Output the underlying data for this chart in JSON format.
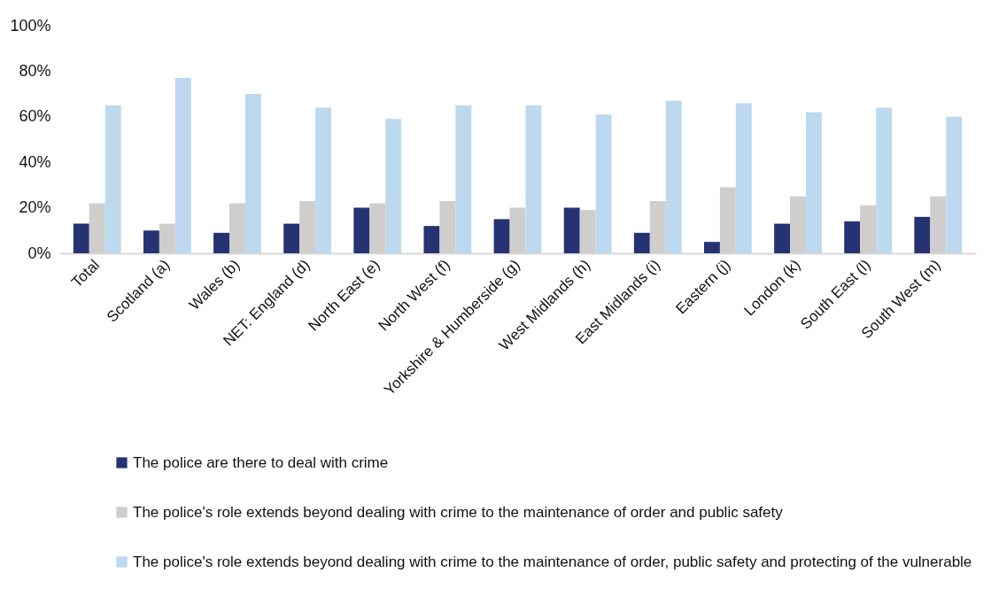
{
  "chart_data": {
    "type": "bar",
    "categories": [
      "Total",
      "Scotland (a)",
      "Wales (b)",
      "NET: England (d)",
      "North East (e)",
      "North West (f)",
      "Yorkshire & Humberside (g)",
      "West Midlands (h)",
      "East Midlands (i)",
      "Eastern (j)",
      "London (k)",
      "South East (l)",
      "South West (m)"
    ],
    "series": [
      {
        "name": "The police are there to deal with crime",
        "color": "#253372",
        "values": [
          13,
          10,
          9,
          13,
          20,
          12,
          15,
          20,
          9,
          5,
          13,
          14,
          16
        ]
      },
      {
        "name": "The police's role extends beyond dealing with crime to the maintenance of order and public safety",
        "color": "#cfcecd",
        "values": [
          22,
          13,
          22,
          23,
          22,
          23,
          20,
          19,
          23,
          29,
          25,
          21,
          25
        ]
      },
      {
        "name": "The police's role extends beyond dealing with crime to the maintenance of order, public safety and protecting of the vulnerable",
        "color": "#bdd9ef",
        "values": [
          65,
          77,
          70,
          64,
          59,
          65,
          65,
          61,
          67,
          66,
          62,
          64,
          60
        ]
      }
    ],
    "ylim": [
      0,
      100
    ],
    "yticks": [
      {
        "value": 0,
        "label": "0%"
      },
      {
        "value": 20,
        "label": "20%"
      },
      {
        "value": 40,
        "label": "40%"
      },
      {
        "value": 60,
        "label": "60%"
      },
      {
        "value": 80,
        "label": "80%"
      },
      {
        "value": 100,
        "label": "100%"
      }
    ],
    "grid": false,
    "legend": "bottom"
  }
}
